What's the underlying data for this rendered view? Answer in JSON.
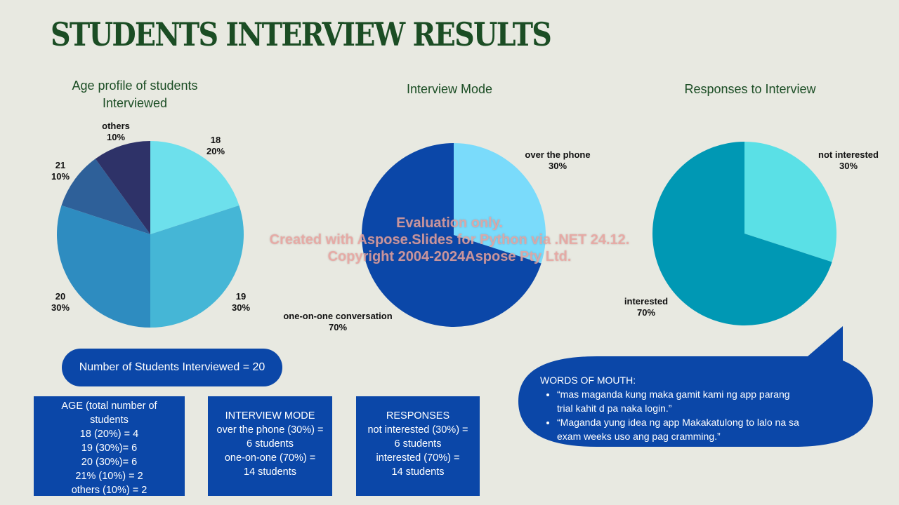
{
  "title": "STUDENTS INTERVIEW RESULTS",
  "chart_data": [
    {
      "type": "pie",
      "title_lines": [
        "Age profile of students",
        "Interviewed"
      ],
      "categories": [
        "18",
        "19",
        "20",
        "21",
        "others"
      ],
      "values": [
        20,
        30,
        30,
        10,
        10
      ],
      "value_labels": [
        "20%",
        "30%",
        "30%",
        "10%",
        "10%"
      ],
      "colors": [
        "#6DE0EC",
        "#45B6D6",
        "#2E8CC0",
        "#2E6099",
        "#2E3268"
      ]
    },
    {
      "type": "pie",
      "title_lines": [
        "Interview Mode"
      ],
      "categories": [
        "over the phone",
        "one-on-one conversation"
      ],
      "values": [
        30,
        70
      ],
      "value_labels": [
        "30%",
        "70%"
      ],
      "colors": [
        "#7ADBFB",
        "#0B47A8"
      ]
    },
    {
      "type": "pie",
      "title_lines": [
        "Responses to Interview"
      ],
      "categories": [
        "not interested",
        "interested"
      ],
      "values": [
        30,
        70
      ],
      "value_labels": [
        "30%",
        "70%"
      ],
      "colors": [
        "#5AE0E6",
        "#0098B4"
      ]
    }
  ],
  "students_count": "Number of Students Interviewed = 20",
  "boxes": {
    "age": [
      "AGE (total number of",
      "students",
      "18 (20%) = 4",
      "19 (30%)= 6",
      "20 (30%)= 6",
      "21% (10%) = 2",
      "others (10%) = 2"
    ],
    "mode": [
      "INTERVIEW MODE",
      "over the phone (30%) =",
      "6 students",
      "one-on-one (70%) =",
      "14 students"
    ],
    "responses": [
      "RESPONSES",
      "not interested (30%) =",
      "6 students",
      "interested (70%) =",
      "14 students"
    ]
  },
  "words": {
    "heading": "WORDS OF MOUTH:",
    "quote1_line1": "“mas maganda kung maka gamit kami ng app parang",
    "quote1_line2": "trial kahit d pa naka login.”",
    "quote2_line1": "“Maganda yung idea ng app Makakatulong to lalo na sa",
    "quote2_line2": "exam weeks uso ang pag cramming.”"
  },
  "watermark": [
    "Evaluation only.",
    "Created with Aspose.Slides for Python via .NET 24.12.",
    "Copyright 2004-2024Aspose Pty Ltd."
  ]
}
